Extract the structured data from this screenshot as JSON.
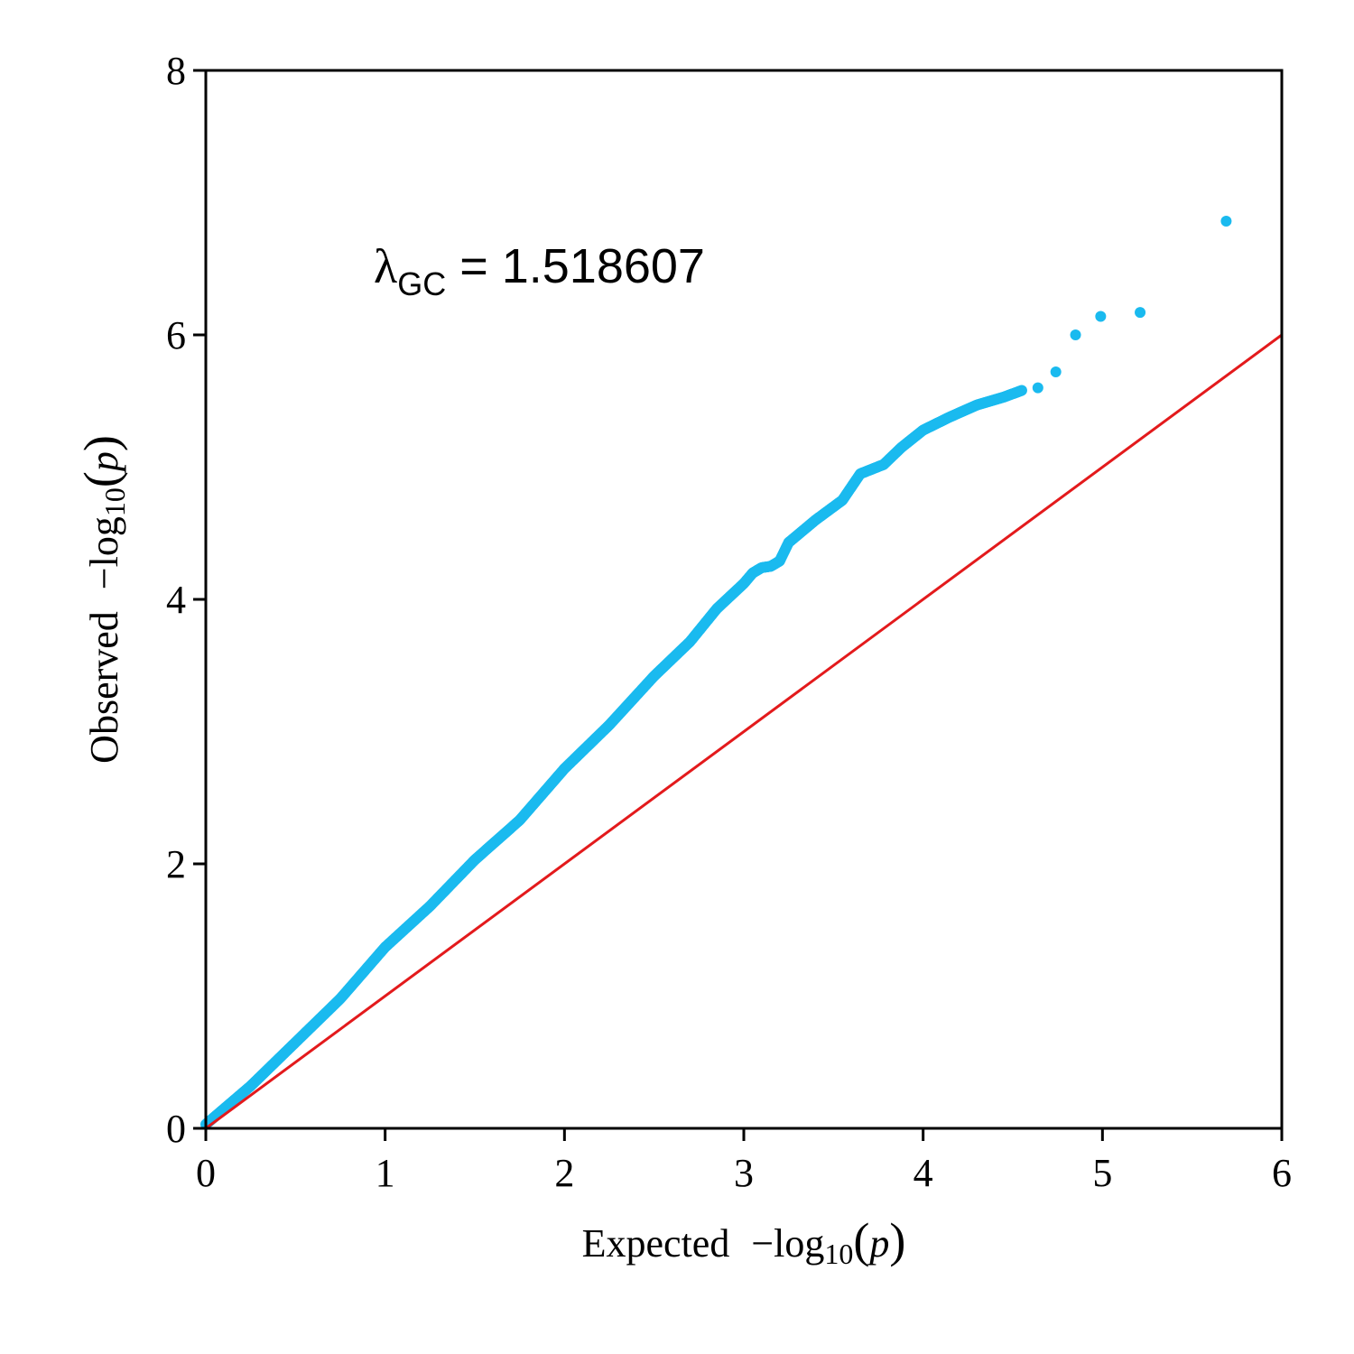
{
  "chart_data": {
    "type": "scatter",
    "xlabel": {
      "text": "Expected",
      "func": "−log",
      "sub": "10",
      "arg": "p"
    },
    "ylabel": {
      "text": "Observed",
      "func": "−log",
      "sub": "10",
      "arg": "p"
    },
    "xlim": [
      0,
      6
    ],
    "ylim": [
      0,
      8
    ],
    "x_ticks": [
      "0",
      "1",
      "2",
      "3",
      "4",
      "5",
      "6"
    ],
    "y_ticks": [
      "0",
      "2",
      "4",
      "6",
      "8"
    ],
    "annotation": {
      "symbol": "λ",
      "sub": "GC",
      "rest": " = 1.518607"
    },
    "grid": false,
    "colors": {
      "points": "#1ABAEF",
      "reference_line": "#E31A1C",
      "axes": "#000000"
    },
    "reference_line": {
      "name": "y = x",
      "x": [
        0,
        6
      ],
      "y": [
        0,
        6
      ]
    },
    "curve_knots": [
      [
        0.0,
        0.03
      ],
      [
        0.25,
        0.32
      ],
      [
        0.5,
        0.65
      ],
      [
        0.75,
        0.98
      ],
      [
        1.0,
        1.37
      ],
      [
        1.25,
        1.68
      ],
      [
        1.5,
        2.03
      ],
      [
        1.75,
        2.33
      ],
      [
        2.0,
        2.72
      ],
      [
        2.25,
        3.05
      ],
      [
        2.5,
        3.42
      ],
      [
        2.7,
        3.68
      ],
      [
        2.85,
        3.93
      ],
      [
        3.0,
        4.12
      ],
      [
        3.05,
        4.2
      ],
      [
        3.1,
        4.24
      ],
      [
        3.15,
        4.25
      ],
      [
        3.2,
        4.29
      ],
      [
        3.25,
        4.43
      ],
      [
        3.4,
        4.6
      ],
      [
        3.55,
        4.75
      ],
      [
        3.65,
        4.95
      ],
      [
        3.78,
        5.02
      ],
      [
        3.88,
        5.15
      ],
      [
        4.0,
        5.28
      ],
      [
        4.15,
        5.38
      ],
      [
        4.3,
        5.47
      ],
      [
        4.45,
        5.53
      ],
      [
        4.55,
        5.58
      ]
    ],
    "extreme_points": [
      {
        "x": 4.64,
        "y": 5.6
      },
      {
        "x": 4.74,
        "y": 5.72
      },
      {
        "x": 4.85,
        "y": 6.0
      },
      {
        "x": 4.99,
        "y": 6.14
      },
      {
        "x": 5.21,
        "y": 6.17
      },
      {
        "x": 5.69,
        "y": 6.86
      }
    ]
  }
}
